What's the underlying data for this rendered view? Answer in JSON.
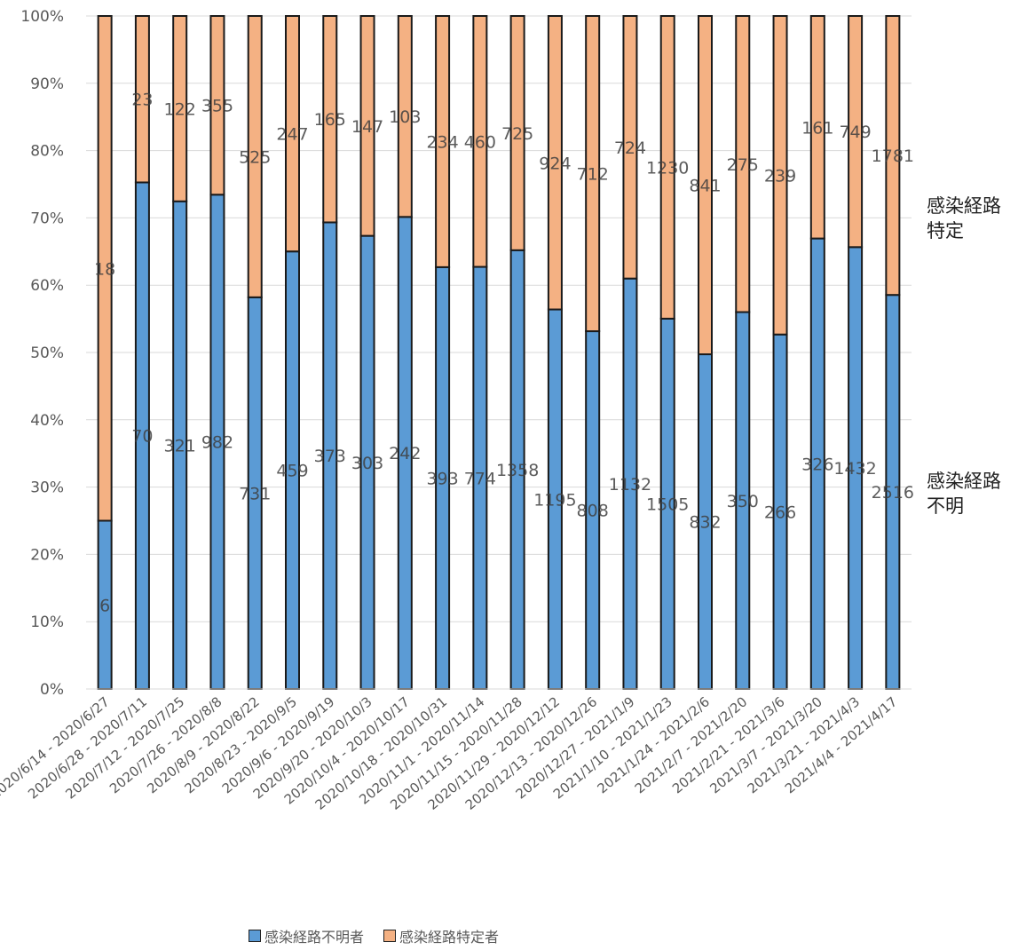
{
  "chart_data": {
    "type": "bar",
    "stacked": "percent",
    "categories": [
      "2020/6/14 - 2020/6/27",
      "2020/6/28 - 2020/7/11",
      "2020/7/12 - 2020/7/25",
      "2020/7/26 - 2020/8/8",
      "2020/8/9 - 2020/8/22",
      "2020/8/23 - 2020/9/5",
      "2020/9/6 - 2020/9/19",
      "2020/9/20 - 2020/10/3",
      "2020/10/4 - 2020/10/17",
      "2020/10/18 - 2020/10/31",
      "2020/11/1 - 2020/11/14",
      "2020/11/15 - 2020/11/28",
      "2020/11/29 - 2020/12/12",
      "2020/12/13 - 2020/12/26",
      "2020/12/27 - 2021/1/9",
      "2021/1/10 - 2021/1/23",
      "2021/1/24 - 2021/2/6",
      "2021/2/7 - 2021/2/20",
      "2021/2/21 - 2021/3/6",
      "2021/3/7 - 2021/3/20",
      "2021/3/21 - 2021/4/3",
      "2021/4/4 - 2021/4/17"
    ],
    "series": [
      {
        "name": "感染経路不明者",
        "color": "#5b9bd5",
        "values": [
          6,
          70,
          321,
          982,
          731,
          459,
          373,
          303,
          242,
          393,
          774,
          1358,
          1195,
          808,
          1132,
          1505,
          832,
          350,
          266,
          326,
          1432,
          2516
        ]
      },
      {
        "name": "感染経路特定者",
        "color": "#f4b183",
        "values": [
          18,
          23,
          122,
          355,
          525,
          247,
          165,
          147,
          103,
          234,
          460,
          725,
          924,
          712,
          724,
          1230,
          841,
          275,
          239,
          161,
          749,
          1781
        ]
      }
    ],
    "ylim": [
      0,
      100
    ],
    "yticks": [
      "0%",
      "10%",
      "20%",
      "30%",
      "40%",
      "50%",
      "60%",
      "70%",
      "80%",
      "90%",
      "100%"
    ],
    "grid": true,
    "legend": "bottom",
    "side_labels": {
      "top": "感染経路\n特定",
      "bottom": "感染経路\n不明"
    }
  }
}
